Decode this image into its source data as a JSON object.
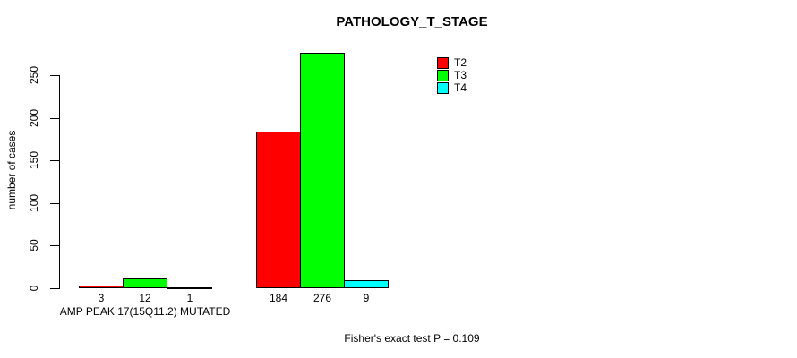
{
  "title": "PATHOLOGY_T_STAGE",
  "footer": "Fisher's exact test P = 0.109",
  "chart_data": {
    "type": "bar",
    "title": "PATHOLOGY_T_STAGE",
    "xlabel": "",
    "ylabel": "number of cases",
    "ylim": [
      0,
      276
    ],
    "yticks": [
      0,
      50,
      100,
      150,
      200,
      250
    ],
    "grid": "off",
    "legend_position": "top-right",
    "categories": [
      "AMP PEAK 17(15Q11.2) MUTATED",
      ""
    ],
    "series": [
      {
        "name": "T2",
        "color": "#ff0000",
        "values": [
          3,
          184
        ]
      },
      {
        "name": "T3",
        "color": "#00ff00",
        "values": [
          12,
          276
        ]
      },
      {
        "name": "T4",
        "color": "#00ffff",
        "values": [
          1,
          9
        ]
      }
    ],
    "bar_value_labels": [
      [
        3,
        12,
        1
      ],
      [
        184,
        276,
        9
      ]
    ],
    "annotations": [
      "Fisher's exact test P = 0.109"
    ]
  },
  "colors": {
    "background": "#ffffff",
    "axis": "#000000",
    "text": "#000000",
    "t2": "#ff0000",
    "t3": "#00ff00",
    "t4": "#00ffff"
  }
}
